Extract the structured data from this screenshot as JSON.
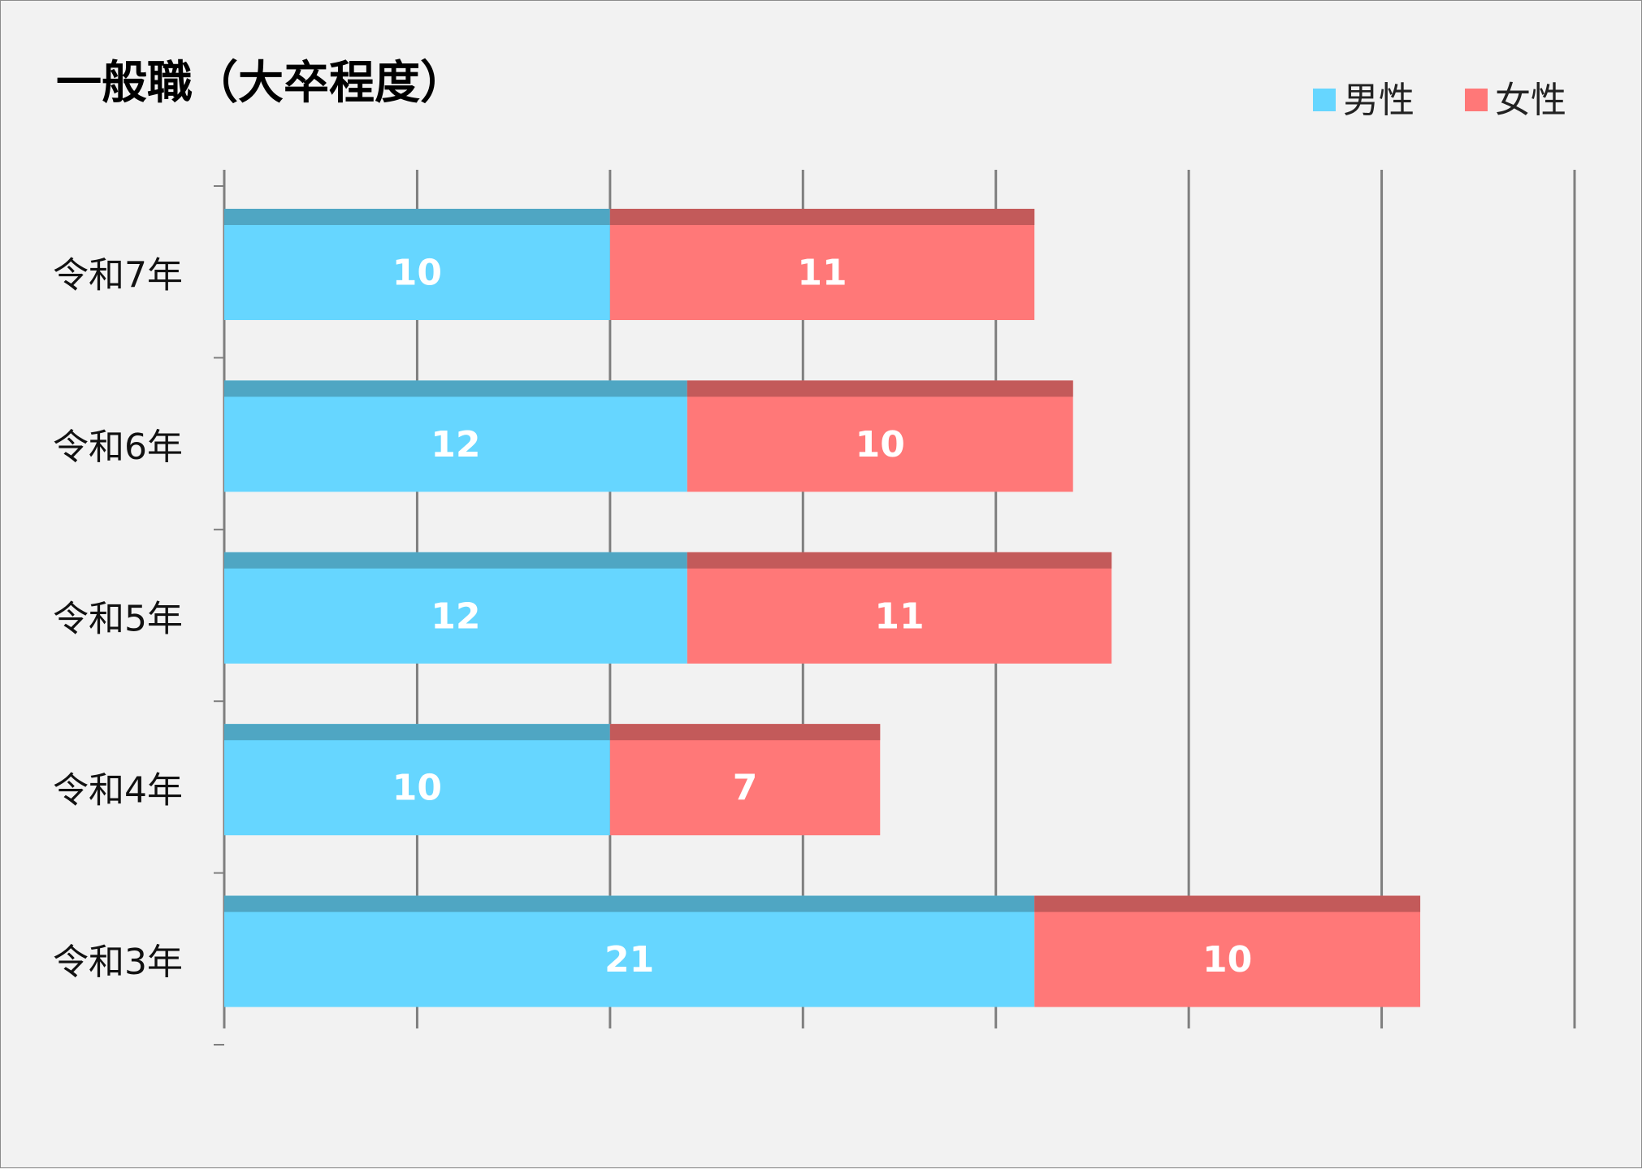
{
  "chart_data": {
    "type": "bar",
    "orientation": "horizontal",
    "stacked": true,
    "title": "一般職（大卒程度）",
    "categories": [
      "令和7年",
      "令和6年",
      "令和5年",
      "令和4年",
      "令和3年"
    ],
    "series": [
      {
        "name": "男性",
        "color": "#66d6ff",
        "band_color": "#4fa6c3",
        "values": [
          10,
          12,
          12,
          10,
          21
        ]
      },
      {
        "name": "女性",
        "color": "#ff7878",
        "band_color": "#c35a5a",
        "values": [
          11,
          10,
          11,
          7,
          10
        ]
      }
    ],
    "xlim": [
      0,
      35
    ],
    "x_grid_step": 5,
    "grid": true,
    "legend_position": "top-right",
    "xlabel": "",
    "ylabel": ""
  }
}
